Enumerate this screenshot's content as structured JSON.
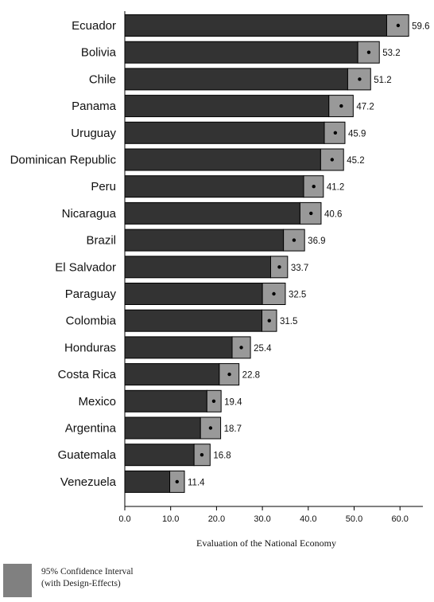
{
  "chart_data": {
    "type": "bar",
    "orientation": "horizontal",
    "xlabel": "Evaluation of the National Economy",
    "xlim": [
      0,
      65
    ],
    "xticks": [
      "0.0",
      "10.0",
      "20.0",
      "30.0",
      "40.0",
      "50.0",
      "60.0"
    ],
    "categories": [
      "Ecuador",
      "Bolivia",
      "Chile",
      "Panama",
      "Uruguay",
      "Dominican Republic",
      "Peru",
      "Nicaragua",
      "Brazil",
      "El Salvador",
      "Paraguay",
      "Colombia",
      "Honduras",
      "Costa Rica",
      "Mexico",
      "Argentina",
      "Guatemala",
      "Venezuela"
    ],
    "values": [
      59.6,
      53.2,
      51.2,
      47.2,
      45.9,
      45.2,
      41.2,
      40.6,
      36.9,
      33.7,
      32.5,
      31.5,
      25.4,
      22.8,
      19.4,
      18.7,
      16.8,
      11.4
    ],
    "ci_low": [
      57.1,
      50.8,
      48.6,
      44.5,
      43.5,
      42.7,
      39.0,
      38.2,
      34.6,
      31.8,
      30.0,
      29.9,
      23.4,
      20.6,
      17.9,
      16.5,
      15.1,
      9.8
    ],
    "ci_high": [
      61.9,
      55.5,
      53.6,
      49.8,
      48.0,
      47.7,
      43.3,
      42.8,
      39.2,
      35.5,
      35.0,
      33.1,
      27.4,
      24.9,
      21.0,
      20.9,
      18.6,
      13.0
    ],
    "value_labels": [
      "59.6",
      "53.2",
      "51.2",
      "47.2",
      "45.9",
      "45.2",
      "41.2",
      "40.6",
      "36.9",
      "33.7",
      "32.5",
      "31.5",
      "25.4",
      "22.8",
      "19.4",
      "18.7",
      "16.8",
      "11.4"
    ],
    "legend": {
      "line1": "95% Confidence Interval",
      "line2": "(with Design-Effects)",
      "position": "bottom-left"
    },
    "colors": {
      "bar": "#333333",
      "ci": "#999999",
      "legend_swatch": "#808080"
    },
    "grid": false
  }
}
